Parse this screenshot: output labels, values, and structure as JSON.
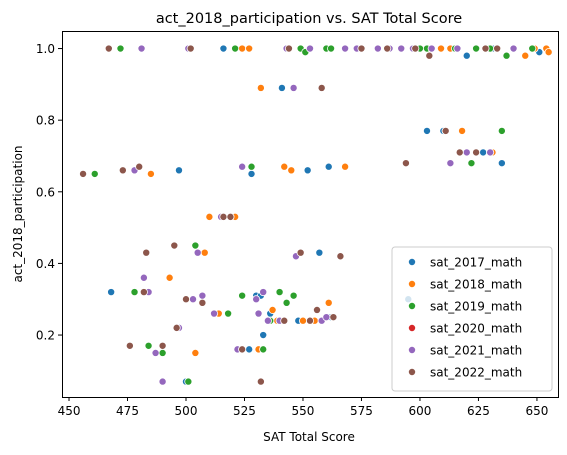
{
  "chart_data": {
    "type": "scatter",
    "title": "act_2018_participation vs. SAT Total Score",
    "xlabel": "SAT Total Score",
    "ylabel": "act_2018_participation",
    "xlim": [
      447,
      659
    ],
    "ylim": [
      0.027,
      1.049
    ],
    "xticks": [
      "450",
      "475",
      "500",
      "525",
      "550",
      "575",
      "600",
      "625",
      "650"
    ],
    "yticks": [
      "0.2",
      "0.4",
      "0.6",
      "0.8",
      "1.0"
    ],
    "grid": false,
    "legend_position": "lower-right",
    "series": [
      {
        "name": "sat_2017_math",
        "color": "#1f77b4",
        "points": [
          [
            468,
            0.32
          ],
          [
            497,
            0.66
          ],
          [
            500,
            0.07
          ],
          [
            516,
            1.0
          ],
          [
            527,
            0.16
          ],
          [
            528,
            0.65
          ],
          [
            530,
            0.31
          ],
          [
            532,
            0.31
          ],
          [
            533,
            0.2
          ],
          [
            536,
            0.26
          ],
          [
            541,
            0.89
          ],
          [
            548,
            0.24
          ],
          [
            552,
            0.66
          ],
          [
            557,
            0.43
          ],
          [
            561,
            0.67
          ],
          [
            562,
            0.25
          ],
          [
            595,
            0.3
          ],
          [
            603,
            0.77
          ],
          [
            610,
            0.77
          ],
          [
            614,
            1.0
          ],
          [
            620,
            0.98
          ],
          [
            627,
            0.71
          ],
          [
            631,
            1.0
          ],
          [
            635,
            0.68
          ],
          [
            651,
            0.99
          ]
        ]
      },
      {
        "name": "sat_2018_math",
        "color": "#ff7f0e",
        "points": [
          [
            485,
            0.65
          ],
          [
            493,
            0.36
          ],
          [
            497,
            0.22
          ],
          [
            504,
            0.15
          ],
          [
            508,
            0.43
          ],
          [
            510,
            0.53
          ],
          [
            514,
            0.26
          ],
          [
            521,
            0.53
          ],
          [
            524,
            1.0
          ],
          [
            527,
            1.0
          ],
          [
            531,
            0.16
          ],
          [
            532,
            0.89
          ],
          [
            533,
            0.32
          ],
          [
            537,
            0.27
          ],
          [
            539,
            0.24
          ],
          [
            542,
            0.67
          ],
          [
            545,
            0.66
          ],
          [
            550,
            0.24
          ],
          [
            553,
            0.24
          ],
          [
            555,
            0.24
          ],
          [
            561,
            0.29
          ],
          [
            563,
            0.25
          ],
          [
            568,
            0.67
          ],
          [
            597,
            1.0
          ],
          [
            609,
            1.0
          ],
          [
            613,
            1.0
          ],
          [
            618,
            0.77
          ],
          [
            624,
            1.0
          ],
          [
            631,
            0.71
          ],
          [
            645,
            0.98
          ],
          [
            649,
            1.0
          ],
          [
            654,
            1.0
          ],
          [
            655,
            0.99
          ]
        ]
      },
      {
        "name": "sat_2019_math",
        "color": "#2ca02c",
        "points": [
          [
            461,
            0.65
          ],
          [
            472,
            1.0
          ],
          [
            478,
            0.32
          ],
          [
            484,
            0.17
          ],
          [
            490,
            0.15
          ],
          [
            501,
            0.07
          ],
          [
            504,
            0.45
          ],
          [
            518,
            0.26
          ],
          [
            521,
            1.0
          ],
          [
            524,
            0.31
          ],
          [
            528,
            0.67
          ],
          [
            533,
            0.16
          ],
          [
            536,
            0.24
          ],
          [
            540,
            0.32
          ],
          [
            543,
            0.29
          ],
          [
            546,
            0.31
          ],
          [
            549,
            1.0
          ],
          [
            551,
            0.99
          ],
          [
            560,
            1.0
          ],
          [
            562,
            1.0
          ],
          [
            575,
            1.0
          ],
          [
            600,
            1.0
          ],
          [
            603,
            1.0
          ],
          [
            615,
            1.0
          ],
          [
            622,
            0.68
          ],
          [
            624,
            1.0
          ],
          [
            630,
            1.0
          ],
          [
            635,
            0.77
          ],
          [
            637,
            0.98
          ],
          [
            648,
            1.0
          ]
        ]
      },
      {
        "name": "sat_2020_math",
        "color": "#d62728",
        "points": []
      },
      {
        "name": "sat_2021_math",
        "color": "#9467bd",
        "points": [
          [
            478,
            0.66
          ],
          [
            481,
            1.0
          ],
          [
            482,
            0.36
          ],
          [
            484,
            0.32
          ],
          [
            487,
            0.15
          ],
          [
            490,
            0.07
          ],
          [
            497,
            0.22
          ],
          [
            501,
            1.0
          ],
          [
            503,
            0.3
          ],
          [
            505,
            0.43
          ],
          [
            507,
            0.31
          ],
          [
            512,
            0.26
          ],
          [
            515,
            0.53
          ],
          [
            522,
            0.16
          ],
          [
            524,
            0.67
          ],
          [
            530,
            0.3
          ],
          [
            531,
            0.26
          ],
          [
            533,
            0.32
          ],
          [
            535,
            0.24
          ],
          [
            540,
            0.24
          ],
          [
            543,
            1.0
          ],
          [
            546,
            0.89
          ],
          [
            547,
            0.42
          ],
          [
            553,
            1.0
          ],
          [
            558,
            0.24
          ],
          [
            560,
            0.25
          ],
          [
            568,
            1.0
          ],
          [
            573,
            1.0
          ],
          [
            582,
            1.0
          ],
          [
            587,
            1.0
          ],
          [
            592,
            1.0
          ],
          [
            597,
            1.0
          ],
          [
            605,
            1.0
          ],
          [
            611,
            0.77
          ],
          [
            613,
            0.68
          ],
          [
            616,
            1.0
          ],
          [
            620,
            0.71
          ],
          [
            630,
            0.71
          ],
          [
            640,
            1.0
          ]
        ]
      },
      {
        "name": "sat_2022_math",
        "color": "#8c564b",
        "points": [
          [
            456,
            0.65
          ],
          [
            467,
            1.0
          ],
          [
            473,
            0.66
          ],
          [
            476,
            0.17
          ],
          [
            480,
            0.67
          ],
          [
            482,
            0.32
          ],
          [
            483,
            0.43
          ],
          [
            490,
            0.17
          ],
          [
            495,
            0.45
          ],
          [
            496,
            0.22
          ],
          [
            500,
            0.3
          ],
          [
            502,
            1.0
          ],
          [
            507,
            0.29
          ],
          [
            516,
            0.53
          ],
          [
            519,
            0.53
          ],
          [
            524,
            0.16
          ],
          [
            532,
            0.07
          ],
          [
            542,
            0.24
          ],
          [
            544,
            1.0
          ],
          [
            549,
            0.43
          ],
          [
            553,
            0.24
          ],
          [
            556,
            0.27
          ],
          [
            558,
            0.89
          ],
          [
            563,
            0.25
          ],
          [
            566,
            0.42
          ],
          [
            575,
            1.0
          ],
          [
            586,
            1.0
          ],
          [
            594,
            0.68
          ],
          [
            598,
            1.0
          ],
          [
            604,
            0.98
          ],
          [
            611,
            0.77
          ],
          [
            617,
            0.71
          ],
          [
            624,
            0.71
          ],
          [
            628,
            1.0
          ],
          [
            633,
            1.0
          ]
        ]
      }
    ]
  }
}
